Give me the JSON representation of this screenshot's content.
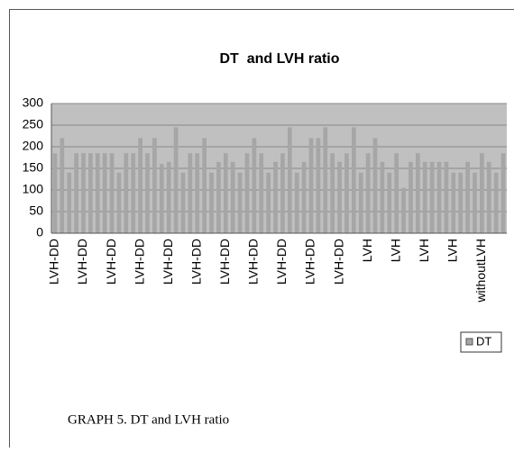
{
  "chart_data": {
    "type": "bar",
    "title": "DT  and LVH ratio",
    "categories": [
      "LVH-DD",
      null,
      null,
      null,
      "LVH-DD",
      null,
      null,
      null,
      "LVH-DD",
      null,
      null,
      null,
      "LVH-DD",
      null,
      null,
      null,
      "LVH-DD",
      null,
      null,
      null,
      "LVH-DD",
      null,
      null,
      null,
      "LVH-DD",
      null,
      null,
      null,
      "LVH-DD",
      null,
      null,
      null,
      "LVH-DD",
      null,
      null,
      null,
      "LVH-DD",
      null,
      null,
      null,
      "LVH-DD",
      null,
      null,
      null,
      "LVH",
      null,
      null,
      null,
      "LVH",
      null,
      null,
      null,
      "LVH",
      null,
      null,
      null,
      "LVH",
      null,
      null,
      null,
      "withoutLVH",
      null,
      null,
      null
    ],
    "series": [
      {
        "name": "DT",
        "color": "#a6a6a6",
        "values": [
          185,
          220,
          140,
          185,
          185,
          185,
          185,
          185,
          185,
          140,
          185,
          185,
          220,
          185,
          220,
          160,
          165,
          245,
          140,
          185,
          185,
          220,
          140,
          165,
          185,
          165,
          140,
          185,
          220,
          185,
          140,
          165,
          185,
          245,
          140,
          165,
          220,
          220,
          245,
          185,
          165,
          185,
          245,
          140,
          185,
          220,
          165,
          140,
          185,
          105,
          165,
          185,
          165,
          165,
          165,
          165,
          140,
          140,
          165,
          140,
          185,
          165,
          140,
          185
        ]
      }
    ],
    "ylim": [
      0,
      300
    ],
    "yticks": [
      0,
      50,
      100,
      150,
      200,
      250,
      300
    ],
    "grid": true,
    "legend": "right"
  },
  "caption": "GRAPH 5. DT and LVH ratio"
}
